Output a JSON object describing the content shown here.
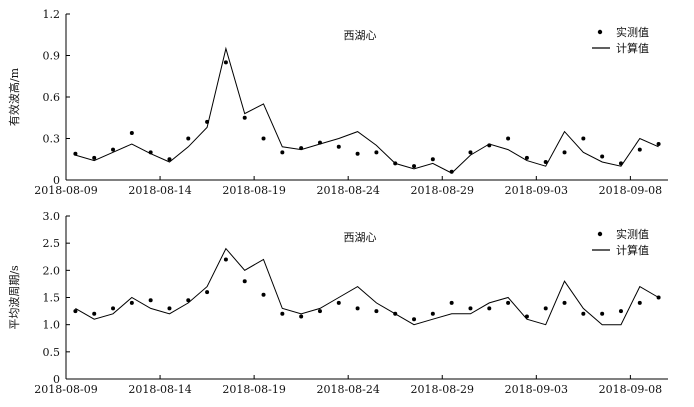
{
  "chart_data": [
    {
      "type": "scatter+line",
      "station_label": "西湖心",
      "ylabel": "有效波高/m",
      "ylim": [
        0,
        1.2
      ],
      "yticks": [
        "0",
        "0.3",
        "0.6",
        "0.9",
        "1.2"
      ],
      "xlim": [
        "2018-08-09",
        "2018-09-10"
      ],
      "xticks": [
        "2018-08-09",
        "2018-08-14",
        "2018-08-19",
        "2018-08-24",
        "2018-08-29",
        "2018-09-03",
        "2018-09-08"
      ],
      "legend": [
        "实测值",
        "计算值"
      ],
      "legend_position": "top-right",
      "grid": false,
      "series": [
        {
          "name": "实测值",
          "style": "dots",
          "x_days": [
            0.5,
            1.5,
            2.5,
            3.5,
            4.5,
            5.5,
            6.5,
            7.5,
            8.5,
            9.5,
            10.5,
            11.5,
            12.5,
            13.5,
            14.5,
            15.5,
            16.5,
            17.5,
            18.5,
            19.5,
            20.5,
            21.5,
            22.5,
            23.5,
            24.5,
            25.5,
            26.5,
            27.5,
            28.5,
            29.5,
            30.5,
            31.5
          ],
          "values": [
            0.19,
            0.16,
            0.22,
            0.34,
            0.2,
            0.15,
            0.3,
            0.42,
            0.85,
            0.45,
            0.3,
            0.2,
            0.23,
            0.27,
            0.24,
            0.19,
            0.2,
            0.12,
            0.1,
            0.15,
            0.06,
            0.2,
            0.25,
            0.3,
            0.16,
            0.13,
            0.2,
            0.3,
            0.17,
            0.12,
            0.22,
            0.26
          ]
        },
        {
          "name": "计算值",
          "style": "line",
          "x_days": [
            0.5,
            1.5,
            2.5,
            3.5,
            4.5,
            5.5,
            6.5,
            7.5,
            8.5,
            9.5,
            10.5,
            11.5,
            12.5,
            13.5,
            14.5,
            15.5,
            16.5,
            17.5,
            18.5,
            19.5,
            20.5,
            21.5,
            22.5,
            23.5,
            24.5,
            25.5,
            26.5,
            27.5,
            28.5,
            29.5,
            30.5,
            31.5
          ],
          "values": [
            0.18,
            0.14,
            0.2,
            0.26,
            0.19,
            0.13,
            0.24,
            0.38,
            0.95,
            0.48,
            0.55,
            0.24,
            0.22,
            0.26,
            0.3,
            0.35,
            0.25,
            0.12,
            0.08,
            0.12,
            0.05,
            0.18,
            0.26,
            0.22,
            0.14,
            0.1,
            0.35,
            0.2,
            0.13,
            0.1,
            0.3,
            0.24
          ]
        }
      ]
    },
    {
      "type": "scatter+line",
      "station_label": "西湖心",
      "ylabel": "平均波周期/s",
      "ylim": [
        0,
        3.0
      ],
      "yticks": [
        "0",
        "0.5",
        "1.0",
        "1.5",
        "2.0",
        "2.5",
        "3.0"
      ],
      "xlim": [
        "2018-08-09",
        "2018-09-10"
      ],
      "xticks": [
        "2018-08-09",
        "2018-08-14",
        "2018-08-19",
        "2018-08-24",
        "2018-08-29",
        "2018-09-03",
        "2018-09-08"
      ],
      "legend": [
        "实测值",
        "计算值"
      ],
      "legend_position": "top-right",
      "grid": false,
      "series": [
        {
          "name": "实测值",
          "style": "dots",
          "x_days": [
            0.5,
            1.5,
            2.5,
            3.5,
            4.5,
            5.5,
            6.5,
            7.5,
            8.5,
            9.5,
            10.5,
            11.5,
            12.5,
            13.5,
            14.5,
            15.5,
            16.5,
            17.5,
            18.5,
            19.5,
            20.5,
            21.5,
            22.5,
            23.5,
            24.5,
            25.5,
            26.5,
            27.5,
            28.5,
            29.5,
            30.5,
            31.5
          ],
          "values": [
            1.25,
            1.2,
            1.3,
            1.4,
            1.45,
            1.3,
            1.45,
            1.6,
            2.2,
            1.8,
            1.55,
            1.2,
            1.15,
            1.25,
            1.4,
            1.3,
            1.25,
            1.2,
            1.1,
            1.2,
            1.4,
            1.3,
            1.3,
            1.4,
            1.15,
            1.3,
            1.4,
            1.2,
            1.2,
            1.25,
            1.4,
            1.5
          ]
        },
        {
          "name": "计算值",
          "style": "line",
          "x_days": [
            0.5,
            1.5,
            2.5,
            3.5,
            4.5,
            5.5,
            6.5,
            7.5,
            8.5,
            9.5,
            10.5,
            11.5,
            12.5,
            13.5,
            14.5,
            15.5,
            16.5,
            17.5,
            18.5,
            19.5,
            20.5,
            21.5,
            22.5,
            23.5,
            24.5,
            25.5,
            26.5,
            27.5,
            28.5,
            29.5,
            30.5,
            31.5
          ],
          "values": [
            1.3,
            1.1,
            1.2,
            1.5,
            1.3,
            1.2,
            1.4,
            1.7,
            2.4,
            2.0,
            2.2,
            1.3,
            1.2,
            1.3,
            1.5,
            1.7,
            1.4,
            1.2,
            1.0,
            1.1,
            1.2,
            1.2,
            1.4,
            1.5,
            1.1,
            1.0,
            1.8,
            1.3,
            1.0,
            1.0,
            1.7,
            1.5
          ]
        }
      ]
    }
  ]
}
